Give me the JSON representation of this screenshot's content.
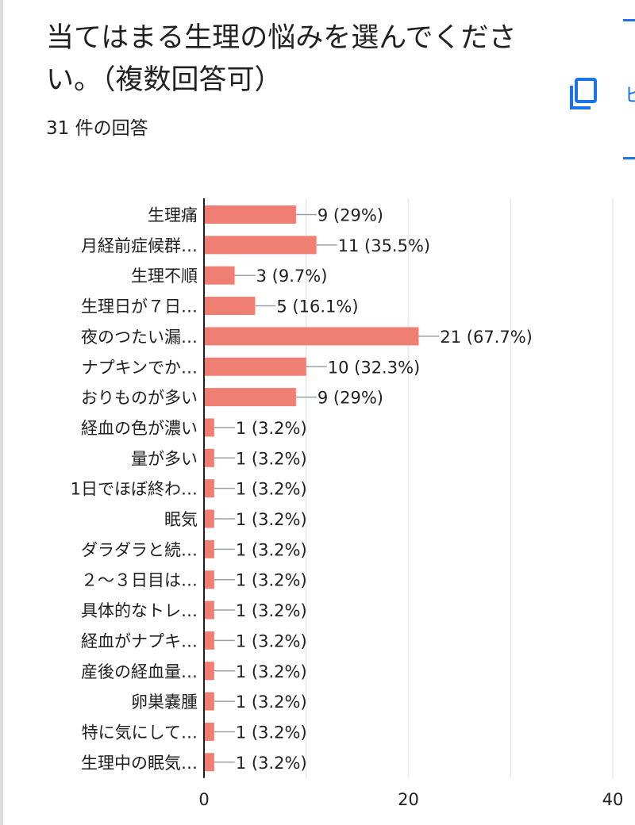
{
  "question": {
    "title": "当てはまる生理の悩みを選んでください。（複数回答可）",
    "response_count": "31 件の回答"
  },
  "side_panel": {
    "copy_icon": "copy-icon",
    "partial_text": "ヒ"
  },
  "colors": {
    "bar": "#f07f73",
    "axis": "#202124",
    "grid": "#e8e8e8",
    "accent": "#1a73e8"
  },
  "chart_data": {
    "type": "bar",
    "orientation": "horizontal",
    "categories": [
      "生理痛",
      "月経前症候群…",
      "生理不順",
      "生理日が７日…",
      "夜のつたい漏…",
      "ナプキンでか…",
      "おりものが多い",
      "経血の色が濃い",
      "量が多い",
      "1日でほぼ終わ…",
      "眠気",
      "ダラダラと続…",
      "２〜３日目は…",
      "具体的なトレ…",
      "経血がナプキ…",
      "産後の経血量…",
      "卵巣嚢腫",
      "特に気にして…",
      "生理中の眠気…"
    ],
    "values": [
      9,
      11,
      3,
      5,
      21,
      10,
      9,
      1,
      1,
      1,
      1,
      1,
      1,
      1,
      1,
      1,
      1,
      1,
      1
    ],
    "data_labels": [
      "9 (29%)",
      "11 (35.5%)",
      "3 (9.7%)",
      "5 (16.1%)",
      "21 (67.7%)",
      "10 (32.3%)",
      "9 (29%)",
      "1 (3.2%)",
      "1 (3.2%)",
      "1 (3.2%)",
      "1 (3.2%)",
      "1 (3.2%)",
      "1 (3.2%)",
      "1 (3.2%)",
      "1 (3.2%)",
      "1 (3.2%)",
      "1 (3.2%)",
      "1 (3.2%)",
      "1 (3.2%)"
    ],
    "xlim": [
      0,
      40
    ],
    "x_ticks": [
      "0",
      "20",
      "40"
    ],
    "x_tick_values": [
      0,
      20,
      40
    ],
    "grid": true,
    "legend": "none"
  }
}
